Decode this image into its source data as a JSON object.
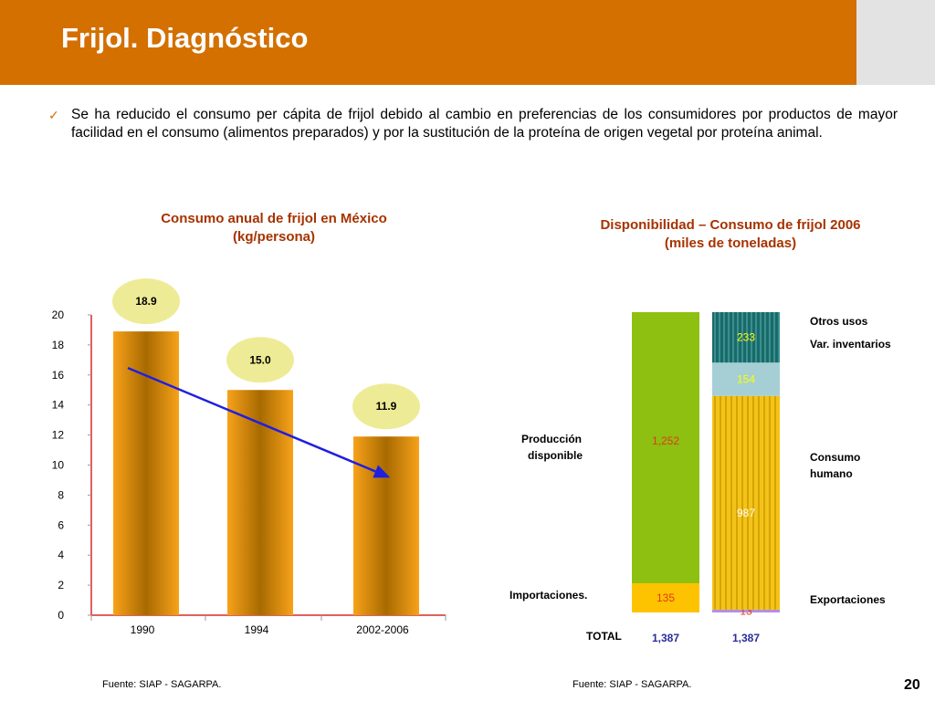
{
  "header": {
    "title": "Frijol. Diagnóstico"
  },
  "bullet": {
    "glyph": "✓",
    "text": "Se ha reducido el consumo per cápita de frijol debido al cambio en preferencias de los consumidores por  productos de mayor facilidad en el consumo (alimentos preparados) y por la sustitución de la proteína de origen vegetal por proteína animal."
  },
  "footer": {
    "source_left": "Fuente:  SIAP - SAGARPA.",
    "source_right": "Fuente:  SIAP - SAGARPA.",
    "page": "20"
  },
  "chart_data": [
    {
      "type": "bar",
      "title": "Consumo anual de frijol en México\n(kg/persona)",
      "title_lines": [
        "Consumo anual de frijol en México",
        "(kg/persona)"
      ],
      "categories": [
        "1990",
        "1994",
        "2002-2006"
      ],
      "values": [
        18.9,
        15.0,
        11.9
      ],
      "value_labels": [
        "18.9",
        "15.0",
        "11.9"
      ],
      "yticks": [
        "0",
        "2",
        "4",
        "6",
        "8",
        "10",
        "12",
        "14",
        "16",
        "18",
        "20"
      ],
      "ylim": [
        0,
        20
      ],
      "trend_arrow": true,
      "colors": {
        "bar": "#f29400",
        "label_bubble": "#eeeb96",
        "trend": "#1f1fe0",
        "axis": "#e06060"
      }
    },
    {
      "type": "stacked_bar",
      "title": "Disponibilidad – Consumo de frijol 2006\n(miles de toneladas)",
      "title_lines": [
        "Disponibilidad – Consumo de frijol 2006",
        "(miles de toneladas)"
      ],
      "bars": [
        {
          "total": "1,387",
          "segments": [
            {
              "label": "Importaciones.",
              "value": 135,
              "value_label": "135",
              "color": "#fdc300",
              "text_color": "#e03a1a"
            },
            {
              "label": "Producción disponible",
              "value": 1252,
              "value_label": "1,252",
              "color": "#8dc010",
              "text_color": "#e03a1a"
            }
          ]
        },
        {
          "total": "1,387",
          "segments": [
            {
              "label": "Exportaciones",
              "value": 13,
              "value_label": "13",
              "color": "#b58ee3",
              "text_color": "#e03a1a"
            },
            {
              "label": "Consumo humano",
              "value": 987,
              "value_label": "987",
              "color": "#f3c31a",
              "text_color": "#ffffff"
            },
            {
              "label": "Var. inventarios",
              "value": 154,
              "value_label": "154",
              "color": "#a5cfd4",
              "text_color": "#ffff00"
            },
            {
              "label": "Otros usos",
              "value": 233,
              "value_label": "233",
              "color": "#1a6a6a",
              "text_color": "#ffff00"
            }
          ]
        }
      ],
      "left_labels": [
        "Producción disponible",
        "Importaciones."
      ],
      "left_label_lines": {
        "produccion": [
          "Producción",
          "disponible"
        ]
      },
      "right_labels": [
        "Otros usos",
        "Var. inventarios",
        "Consumo humano",
        "Exportaciones"
      ],
      "right_label_lines": {
        "consumo": [
          "Consumo",
          "humano"
        ]
      },
      "total_label": "TOTAL",
      "colors": {
        "total_text": "#2b2b9a"
      }
    }
  ]
}
